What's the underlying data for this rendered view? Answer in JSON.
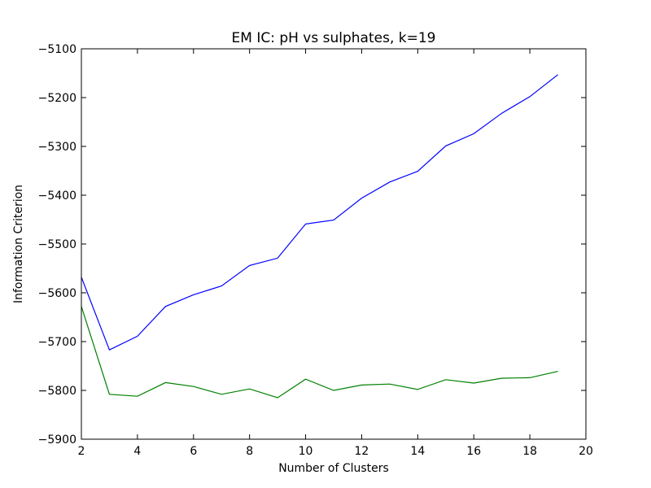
{
  "chart_data": {
    "type": "line",
    "title": "EM IC: pH vs sulphates, k=19",
    "xlabel": "Number of Clusters",
    "ylabel": "Information Criterion",
    "xlim": [
      2,
      20
    ],
    "ylim": [
      -5900,
      -5100
    ],
    "xticks": [
      2,
      4,
      6,
      8,
      10,
      12,
      14,
      16,
      18,
      20
    ],
    "yticks": [
      -5100,
      -5200,
      -5300,
      -5400,
      -5500,
      -5600,
      -5700,
      -5800,
      -5900
    ],
    "ytick_labels": [
      "−5100",
      "−5200",
      "−5300",
      "−5400",
      "−5500",
      "−5600",
      "−5700",
      "−5800",
      "−5900"
    ],
    "grid": false,
    "x": [
      2,
      3,
      4,
      5,
      6,
      7,
      8,
      9,
      10,
      11,
      12,
      13,
      14,
      15,
      16,
      17,
      18,
      19
    ],
    "series": [
      {
        "color": "#0000ff",
        "values": [
          -5568,
          -5717,
          -5689,
          -5628,
          -5604,
          -5586,
          -5544,
          -5529,
          -5459,
          -5451,
          -5406,
          -5373,
          -5351,
          -5299,
          -5274,
          -5232,
          -5198,
          -5153
        ]
      },
      {
        "color": "#008000",
        "values": [
          -5628,
          -5808,
          -5812,
          -5784,
          -5792,
          -5808,
          -5797,
          -5815,
          -5777,
          -5800,
          -5789,
          -5787,
          -5798,
          -5778,
          -5785,
          -5775,
          -5774,
          -5761
        ]
      }
    ]
  }
}
